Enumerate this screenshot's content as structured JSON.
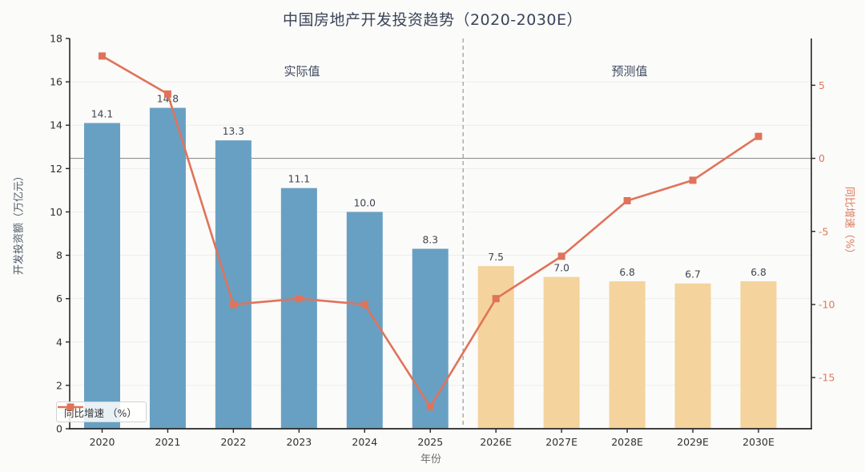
{
  "title": "中国房地产开发投资趋势（2020-2030E）",
  "annotations": {
    "actual_label": "实际值",
    "forecast_label": "预测值"
  },
  "legend": {
    "label": "同比增速 （%）"
  },
  "axes": {
    "x_title": "年份",
    "y_left_title": "开发投资额（万亿元）",
    "y_right_title": "同比增速（%）"
  },
  "colors": {
    "background": "#fbfbf9",
    "bar_actual": "#68a0c4",
    "bar_forecast": "#f4d39c",
    "line": "#e0735a",
    "zero_line": "#909090",
    "gridline": "#ededed",
    "spine": "#262626",
    "separator": "#a6a6a6",
    "tick_label_left": "#2f2f2f",
    "tick_label_bottom": "#2f2f2f",
    "tick_label_right": "#dc795d",
    "bar_label": "#3d4452"
  },
  "chart_data": {
    "type": "bar",
    "title": "中国房地产开发投资趋势（2020-2030E）",
    "categories": [
      "2020",
      "2021",
      "2022",
      "2023",
      "2024",
      "2025",
      "2026E",
      "2027E",
      "2028E",
      "2029E",
      "2030E"
    ],
    "bar_series": {
      "name": "开发投资额（万亿元）",
      "values": [
        14.1,
        14.8,
        13.3,
        11.1,
        10.0,
        8.3,
        7.5,
        7.0,
        6.8,
        6.7,
        6.8
      ],
      "actual_count": 6
    },
    "line_series": {
      "name": "同比增速 （%）",
      "axis": "right",
      "values": [
        7.0,
        4.4,
        -10.0,
        -9.6,
        -10.0,
        -17.0,
        -9.6,
        -6.7,
        -2.9,
        -1.5,
        1.5
      ]
    },
    "xlabel": "年份",
    "ylabel_left": "开发投资额（万亿元）",
    "ylabel_right": "同比增速（%）",
    "ylim_left": [
      0,
      18
    ],
    "ylim_right": [
      -18.5,
      8.2
    ],
    "yticks_left": [
      0,
      2,
      4,
      6,
      8,
      10,
      12,
      14,
      16,
      18
    ],
    "yticks_right": [
      5,
      0,
      -5,
      -10,
      -15
    ],
    "separator_after": "2025",
    "actual_region_label": "实际值",
    "forecast_region_label": "预测值",
    "grid": true,
    "legend_position": "lower left"
  }
}
